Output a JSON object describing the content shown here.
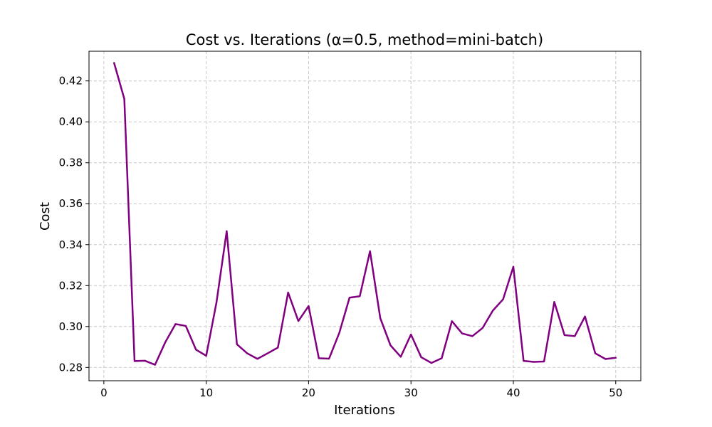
{
  "chart_data": {
    "type": "line",
    "title": "Cost vs. Iterations (α=0.5, method=mini-batch)",
    "xlabel": "Iterations",
    "ylabel": "Cost",
    "xlim": [
      -1.45,
      52.45
    ],
    "ylim": [
      0.2735,
      0.4345
    ],
    "xticks": [
      0,
      10,
      20,
      30,
      40,
      50
    ],
    "xtick_labels": [
      "0",
      "10",
      "20",
      "30",
      "40",
      "50"
    ],
    "yticks": [
      0.28,
      0.3,
      0.32,
      0.34,
      0.36,
      0.38,
      0.4,
      0.42
    ],
    "ytick_labels": [
      "0.28",
      "0.30",
      "0.32",
      "0.34",
      "0.36",
      "0.38",
      "0.40",
      "0.42"
    ],
    "grid": true,
    "line_color": "#800080",
    "grid_color": "#c8c8c8",
    "series": [
      {
        "x": [
          1,
          2,
          3,
          4,
          5,
          6,
          7,
          8,
          9,
          10,
          11,
          12,
          13,
          14,
          15,
          16,
          17,
          18,
          19,
          20,
          21,
          22,
          23,
          24,
          25,
          26,
          27,
          28,
          29,
          30,
          31,
          32,
          33,
          34,
          35,
          36,
          37,
          38,
          39,
          40,
          41,
          42,
          43,
          44,
          45,
          46,
          47,
          48,
          49,
          50
        ],
        "values": [
          0.4288,
          0.4112,
          0.2831,
          0.2833,
          0.2813,
          0.2923,
          0.3012,
          0.3003,
          0.2887,
          0.2857,
          0.3117,
          0.3466,
          0.2913,
          0.2869,
          0.2842,
          0.2869,
          0.2897,
          0.3166,
          0.3027,
          0.31,
          0.2845,
          0.2843,
          0.2969,
          0.3141,
          0.3148,
          0.3368,
          0.3041,
          0.2908,
          0.2852,
          0.2961,
          0.285,
          0.2822,
          0.2845,
          0.3026,
          0.2966,
          0.2953,
          0.2993,
          0.3078,
          0.3133,
          0.3292,
          0.2832,
          0.2827,
          0.2829,
          0.312,
          0.2958,
          0.2953,
          0.3049,
          0.2869,
          0.2841,
          0.2847
        ]
      }
    ]
  }
}
